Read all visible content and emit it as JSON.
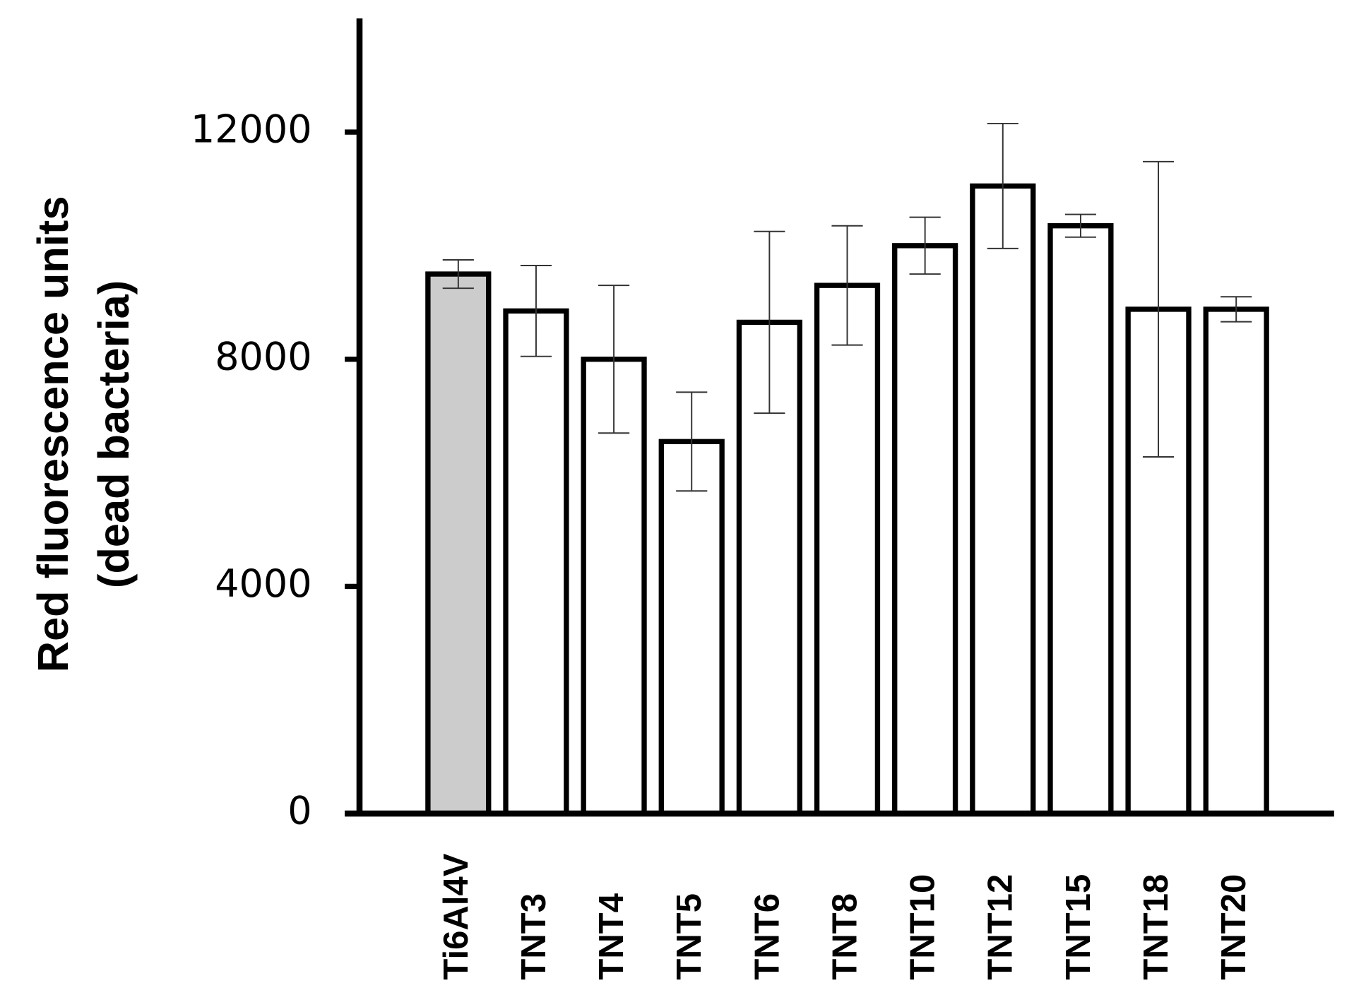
{
  "chart_data": {
    "type": "bar",
    "y_axis_label": [
      "Red fluorescence units",
      "(dead bacteria)"
    ],
    "categories": [
      "Ti6Al4V",
      "TNT3",
      "TNT4",
      "TNT5",
      "TNT6",
      "TNT8",
      "TNT10",
      "TNT12",
      "TNT15",
      "TNT18",
      "TNT20"
    ],
    "values": [
      9500,
      8850,
      8000,
      6550,
      8650,
      9300,
      10000,
      11050,
      10350,
      8880,
      8880
    ],
    "errors": [
      250,
      800,
      1300,
      870,
      1600,
      1050,
      500,
      1100,
      200,
      2600,
      220
    ],
    "colors": [
      "#cccccc",
      "#ffffff",
      "#ffffff",
      "#ffffff",
      "#ffffff",
      "#ffffff",
      "#ffffff",
      "#ffffff",
      "#ffffff",
      "#ffffff",
      "#ffffff"
    ],
    "ylim": [
      0,
      14000
    ],
    "yticks": [
      0,
      4000,
      8000,
      12000
    ]
  }
}
